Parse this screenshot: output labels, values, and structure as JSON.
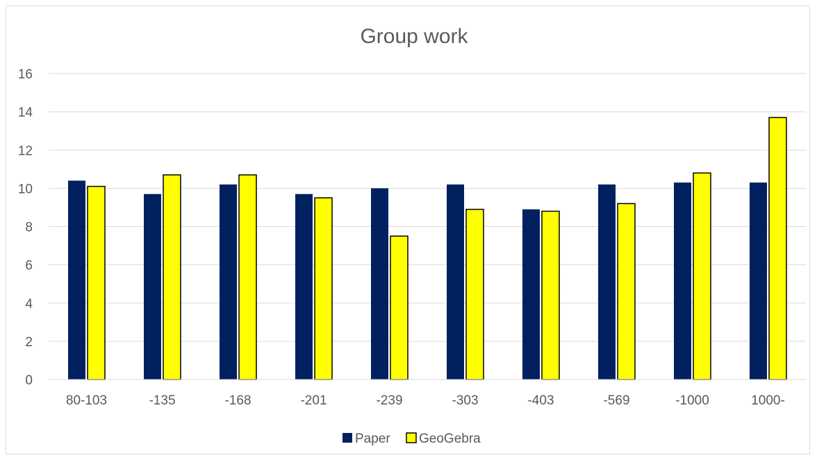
{
  "chart_data": {
    "type": "bar",
    "title": "Group work",
    "xlabel": "",
    "ylabel": "",
    "categories": [
      "80-103",
      "-135",
      "-168",
      "-201",
      "-239",
      "-303",
      "-403",
      "-569",
      "-1000",
      "1000-"
    ],
    "series": [
      {
        "name": "Paper",
        "color": "#002060",
        "values": [
          10.4,
          9.7,
          10.2,
          9.7,
          10.0,
          10.2,
          8.9,
          10.2,
          10.3,
          10.3
        ]
      },
      {
        "name": "GeoGebra",
        "color": "#ffff00",
        "values": [
          10.1,
          10.7,
          10.7,
          9.5,
          7.5,
          8.9,
          8.8,
          9.2,
          10.8,
          13.7
        ]
      }
    ],
    "ylim": [
      0,
      16
    ],
    "yticks": [
      0,
      2,
      4,
      6,
      8,
      10,
      12,
      14,
      16
    ],
    "grid": true,
    "legend": "bottom"
  }
}
